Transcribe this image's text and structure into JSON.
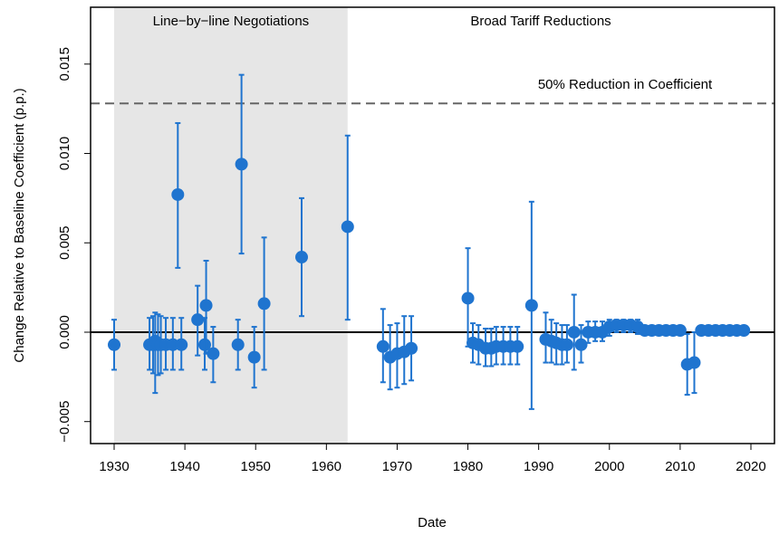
{
  "chart_data": {
    "type": "scatter",
    "xlabel": "Date",
    "ylabel": "Change Relative to Baseline Coefficient (p.p.)",
    "annotations": [
      "Line−by−line Negotiations",
      "Broad Tariff Reductions",
      "50% Reduction in Coefficient"
    ],
    "shade": [
      1930,
      1963
    ],
    "reference_line": 0.0128,
    "color": "#1f74cf",
    "x": [
      1930,
      1935,
      1935.5,
      1935.8,
      1936.2,
      1936.6,
      1937.3,
      1938.3,
      1939,
      1939.5,
      1941.8,
      1942.8,
      1943,
      1944,
      1947.5,
      1948,
      1949.8,
      1951.2,
      1956.5,
      1963,
      1968,
      1969,
      1970,
      1971,
      1972,
      1980,
      1980.7,
      1981.5,
      1982.5,
      1983.3,
      1984,
      1985,
      1986,
      1987,
      1989,
      1991,
      1991.8,
      1992.5,
      1993.3,
      1994,
      1995,
      1996,
      1997,
      1998,
      1999,
      2000,
      2001,
      2002,
      2003,
      2004,
      2005,
      2006,
      2007,
      2008,
      2009,
      2010,
      2011,
      2012,
      2013,
      2014,
      2015,
      2016,
      2017,
      2018,
      2019
    ],
    "values": [
      -0.0007,
      -0.0007,
      -0.0007,
      -0.0005,
      -0.0007,
      -0.0007,
      -0.0007,
      -0.0007,
      0.0077,
      -0.0007,
      0.0007,
      -0.0007,
      0.0015,
      -0.0012,
      -0.0007,
      0.0094,
      -0.0014,
      0.0016,
      0.0042,
      0.0059,
      -0.0008,
      -0.0014,
      -0.0012,
      -0.0011,
      -0.0009,
      0.0019,
      -0.0006,
      -0.0007,
      -0.0009,
      -0.0009,
      -0.0008,
      -0.0008,
      -0.0008,
      -0.0008,
      0.0015,
      -0.0004,
      -0.0005,
      -0.0006,
      -0.0007,
      -0.0007,
      0.0,
      -0.0007,
      0.0,
      0.0,
      0.0,
      0.0003,
      0.0004,
      0.0004,
      0.0004,
      0.0003,
      0.0001,
      0.0001,
      0.0001,
      0.0001,
      0.0001,
      0.0001,
      -0.0018,
      -0.0017,
      0.0001,
      0.0001,
      0.0001,
      0.0001,
      0.0001,
      0.0001,
      0.0001
    ],
    "lower": [
      -0.0021,
      -0.0021,
      -0.0023,
      -0.0034,
      -0.0024,
      -0.0023,
      -0.0021,
      -0.0021,
      0.0036,
      -0.0021,
      -0.0013,
      -0.0021,
      -0.0012,
      -0.0028,
      -0.0021,
      0.0044,
      -0.0031,
      -0.0021,
      0.0009,
      0.0007,
      -0.0028,
      -0.0032,
      -0.0031,
      -0.0029,
      -0.0027,
      -0.0008,
      -0.0017,
      -0.0018,
      -0.0019,
      -0.0019,
      -0.0018,
      -0.0018,
      -0.0018,
      -0.0018,
      -0.0043,
      -0.0017,
      -0.0017,
      -0.0018,
      -0.0018,
      -0.0017,
      -0.0021,
      -0.0017,
      -0.0006,
      -0.0005,
      -0.0005,
      -0.0002,
      0.0,
      0.0,
      0.0,
      -0.0001,
      -0.0001,
      -0.0001,
      -0.0001,
      -0.0001,
      -0.0001,
      -0.0001,
      -0.0035,
      -0.0034,
      -0.0001,
      -0.0001,
      -0.0001,
      -0.0001,
      -0.0001,
      -0.0001,
      -0.0001
    ],
    "upper": [
      0.0007,
      0.0008,
      0.0009,
      0.0011,
      0.001,
      0.0009,
      0.0008,
      0.0008,
      0.0117,
      0.0008,
      0.0026,
      0.0008,
      0.004,
      0.0003,
      0.0007,
      0.0144,
      0.0003,
      0.0053,
      0.0075,
      0.011,
      0.0013,
      0.0004,
      0.0005,
      0.0009,
      0.0009,
      0.0047,
      0.0005,
      0.0004,
      0.0002,
      0.0002,
      0.0003,
      0.0003,
      0.0003,
      0.0003,
      0.0073,
      0.0011,
      0.0007,
      0.0005,
      0.0004,
      0.0004,
      0.0021,
      0.0004,
      0.0006,
      0.0006,
      0.0006,
      0.0007,
      0.0007,
      0.0007,
      0.0007,
      0.0007,
      0.0003,
      0.0003,
      0.0003,
      0.0003,
      0.0003,
      0.0003,
      -0.0001,
      0.0,
      0.0003,
      0.0003,
      0.0003,
      0.0003,
      0.0003,
      0.0003,
      0.0003
    ],
    "xlim": [
      1926.67,
      2023.33
    ],
    "ylim": [
      -0.00623,
      0.01818
    ],
    "xticks": [
      1930,
      1940,
      1950,
      1960,
      1970,
      1980,
      1990,
      2000,
      2010,
      2020
    ],
    "yticks": [
      {
        "value": -0.005,
        "label": "−0.005"
      },
      {
        "value": 0,
        "label": "0.000"
      },
      0.005,
      {
        "value": 0.01,
        "label": "0.010"
      },
      0.015
    ]
  }
}
